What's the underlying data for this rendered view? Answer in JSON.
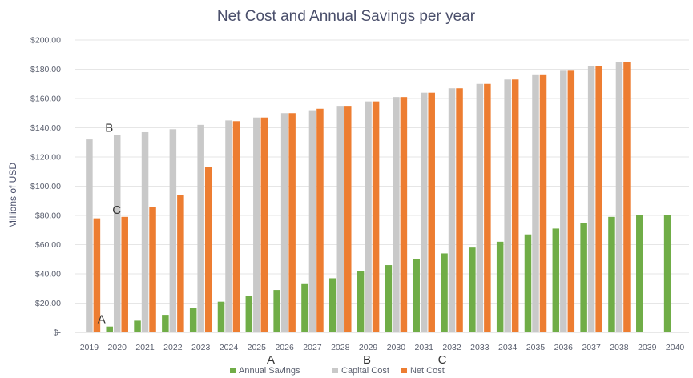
{
  "chart_data": {
    "type": "bar",
    "title": "Net Cost and Annual Savings per year",
    "xlabel": "",
    "ylabel": "Millions of USD",
    "ylim": [
      0,
      200
    ],
    "y_ticks": [
      "$-",
      "$20.00",
      "$40.00",
      "$60.00",
      "$80.00",
      "$100.00",
      "$120.00",
      "$140.00",
      "$160.00",
      "$180.00",
      "$200.00"
    ],
    "grid": true,
    "legend_position": "bottom",
    "categories": [
      "2019",
      "2020",
      "2021",
      "2022",
      "2023",
      "2024",
      "2025",
      "2026",
      "2027",
      "2028",
      "2029",
      "2030",
      "2031",
      "2032",
      "2033",
      "2034",
      "2035",
      "2036",
      "2037",
      "2038",
      "2039",
      "2040"
    ],
    "series": [
      {
        "name": "Annual Savings",
        "color": "#70ad47",
        "values": [
          0,
          4,
          8,
          12,
          16.5,
          21,
          25,
          29,
          33,
          37,
          42,
          46,
          50,
          54,
          58,
          62,
          67,
          71,
          75,
          79,
          80,
          80
        ]
      },
      {
        "name": "Capital Cost",
        "color": "#c9c9c9",
        "values": [
          132,
          135,
          137,
          139,
          142,
          145,
          147,
          150,
          152,
          155,
          158,
          161,
          164,
          167,
          170,
          173,
          176,
          179,
          182,
          185,
          0,
          0
        ]
      },
      {
        "name": "Net Cost",
        "color": "#ed7d31",
        "values": [
          78,
          79,
          86,
          94,
          113,
          144.5,
          147,
          150,
          153,
          155,
          158,
          161,
          164,
          167,
          170,
          173,
          176,
          179,
          182,
          185,
          0,
          0
        ]
      }
    ],
    "annotations": [
      {
        "text": "A",
        "category": "2020",
        "series": "Annual Savings",
        "value": 4
      },
      {
        "text": "B",
        "category": "2020",
        "series": "Capital Cost",
        "value": 135
      },
      {
        "text": "C",
        "category": "2020",
        "series": "Net Cost",
        "value": 79
      }
    ],
    "legend_annotations": [
      {
        "text": "A",
        "series": "Annual Savings"
      },
      {
        "text": "B",
        "series": "Capital Cost"
      },
      {
        "text": "C",
        "series": "Net Cost"
      }
    ]
  }
}
